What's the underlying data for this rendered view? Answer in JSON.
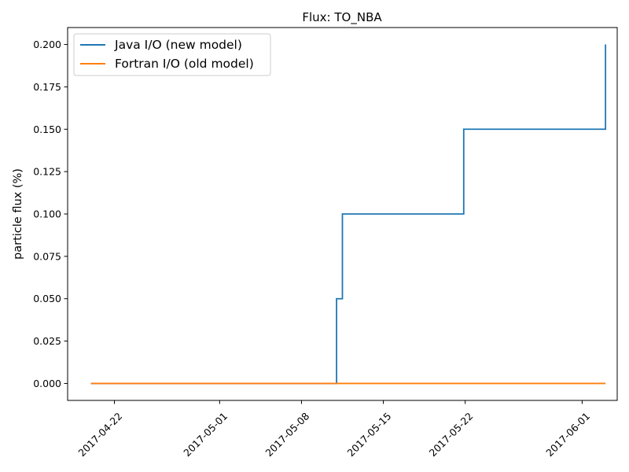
{
  "chart_data": {
    "type": "line",
    "title": "Flux: TO_NBA",
    "xlabel": "",
    "ylabel": "particle flux (%)",
    "x_axis_type": "date",
    "xlim": [
      "2017-04-18",
      "2017-06-04"
    ],
    "ylim": [
      -0.01,
      0.21
    ],
    "x_ticks": [
      "2017-04-22",
      "2017-05-01",
      "2017-05-08",
      "2017-05-15",
      "2017-05-22",
      "2017-06-01"
    ],
    "y_ticks": [
      0.0,
      0.025,
      0.05,
      0.075,
      0.1,
      0.125,
      0.15,
      0.175,
      0.2
    ],
    "y_tick_labels": [
      "0.000",
      "0.025",
      "0.050",
      "0.075",
      "0.100",
      "0.125",
      "0.150",
      "0.175",
      "0.200"
    ],
    "grid": false,
    "legend_position": "top-left",
    "series": [
      {
        "name": "Java I/O (new model)",
        "color": "#1f77b4",
        "step": true,
        "x": [
          "2017-04-20",
          "2017-05-10 12:00",
          "2017-05-11 00:00",
          "2017-05-11 12:00",
          "2017-05-21 12:00",
          "2017-05-21 21:00",
          "2017-06-03"
        ],
        "y": [
          0.0,
          0.0,
          0.05,
          0.1,
          0.1,
          0.15,
          0.2
        ]
      },
      {
        "name": "Fortran I/O (old model)",
        "color": "#ff7f0e",
        "step": true,
        "x": [
          "2017-04-20",
          "2017-06-03"
        ],
        "y": [
          0.0,
          0.0
        ]
      }
    ]
  }
}
